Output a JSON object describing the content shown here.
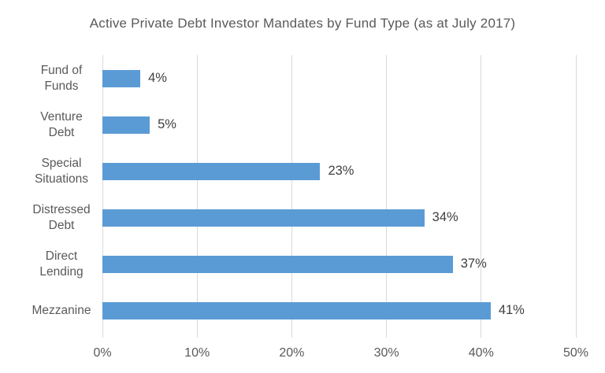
{
  "chart_data": {
    "type": "bar",
    "orientation": "horizontal",
    "title": "Active Private Debt Investor Mandates by Fund Type (as at July 2017)",
    "categories": [
      "Fund of\nFunds",
      "Venture\nDebt",
      "Special\nSituations",
      "Distressed\nDebt",
      "Direct\nLending",
      "Mezzanine"
    ],
    "values": [
      4,
      5,
      23,
      34,
      37,
      41
    ],
    "data_labels": [
      "4%",
      "5%",
      "23%",
      "34%",
      "37%",
      "41%"
    ],
    "xlim": [
      0,
      50
    ],
    "x_tick_values": [
      0,
      10,
      20,
      30,
      40,
      50
    ],
    "x_tick_labels": [
      "0%",
      "10%",
      "20%",
      "30%",
      "40%",
      "50%"
    ],
    "grid": "vertical",
    "legend": "none",
    "colors": {
      "bar": "#5B9BD5",
      "gridline": "#D9D9D9",
      "title": "#595959",
      "axis_label": "#595959",
      "category_label": "#595959",
      "data_label": "#404040",
      "background": "#FFFFFF"
    }
  }
}
